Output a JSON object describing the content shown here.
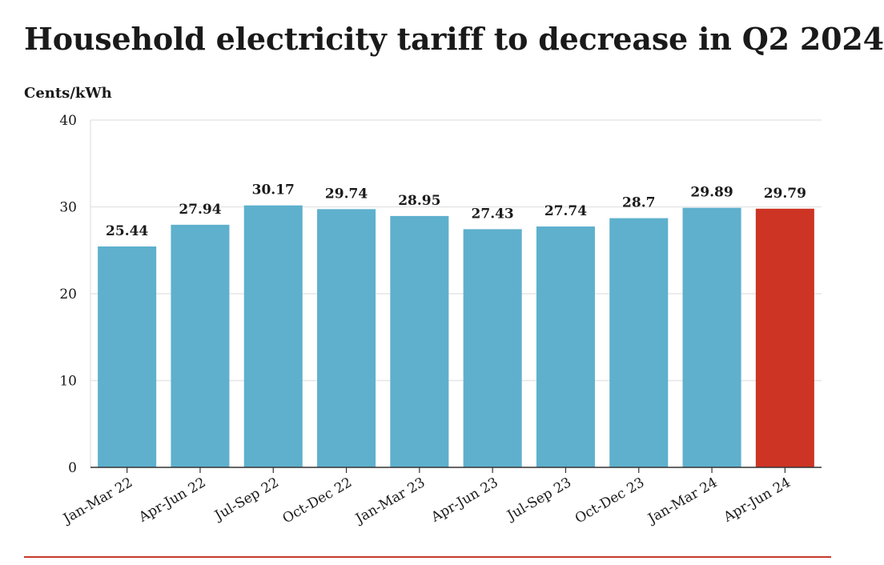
{
  "header": {
    "title": "Household electricity tariff to decrease in Q2 2024",
    "unit_label": "Cents/kWh"
  },
  "colors": {
    "bar": "#5eb0cd",
    "highlight": "#cd3424",
    "grid": "#e6e6e6",
    "axis": "#333333",
    "rule": "#c7392b"
  },
  "chart_data": {
    "type": "bar",
    "title": "Household electricity tariff to decrease in Q2 2024",
    "ylabel": "Cents/kWh",
    "xlabel": "",
    "ylim": [
      0,
      40
    ],
    "yticks": [
      0,
      10,
      20,
      30,
      40
    ],
    "grid": true,
    "categories": [
      "Jan-Mar 22",
      "Apr-Jun 22",
      "Jul-Sep 22",
      "Oct-Dec 22",
      "Jan-Mar 23",
      "Apr-Jun 23",
      "Jul-Sep 23",
      "Oct-Dec 23",
      "Jan-Mar 24",
      "Apr-Jun 24"
    ],
    "values": [
      25.44,
      27.94,
      30.17,
      29.74,
      28.95,
      27.43,
      27.74,
      28.7,
      29.89,
      29.79
    ],
    "value_labels": [
      "25.44",
      "27.94",
      "30.17",
      "29.74",
      "28.95",
      "27.43",
      "27.74",
      "28.7",
      "29.89",
      "29.79"
    ],
    "highlight_index": 9
  }
}
